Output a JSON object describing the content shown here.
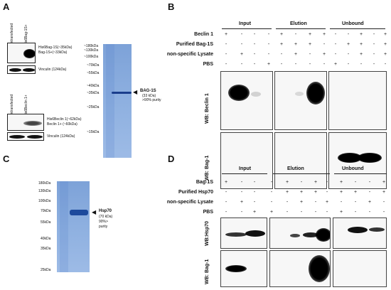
{
  "panels": {
    "A": "A",
    "B": "B",
    "C": "C",
    "D": "D"
  },
  "panelA": {
    "blot1_lanes": [
      "Untransfected",
      "His6Bag-1S+"
    ],
    "blot1_labels": [
      "His6Bag-1S(~35kDa)",
      "Bag-1S+(~33kDa)"
    ],
    "blot1_vinculin": "Vinculin (124kDa)",
    "blot2_lanes": [
      "Untransfected",
      "His6Beclin 1+"
    ],
    "blot2_labels": [
      "His6Beclin 1(~62kDa)",
      "Beclin 1+ (~60kDa)"
    ],
    "blot2_vinculin": "Vinculin (124kDa)",
    "ladder": [
      "~180kDa",
      "~130kDa",
      "~100kDa",
      "~70kDa",
      "~55kDa",
      "~40kDa",
      "~35kDa",
      "~25kDa",
      "~15kDa"
    ],
    "band_label": "BAG-1S",
    "band_detail": [
      "(33 kDa)",
      ">90% purity"
    ]
  },
  "panelB": {
    "groups": [
      "Input",
      "Elution",
      "Unbound"
    ],
    "rows": [
      {
        "label": "Beclin 1",
        "values": [
          "+",
          "-",
          "-",
          "-",
          "+",
          "-",
          "+",
          "+",
          "-",
          "-",
          "+",
          "-",
          "+"
        ]
      },
      {
        "label": "Purified Bag-1S",
        "values": [
          "-",
          "-",
          "-",
          "-",
          "+",
          "+",
          "+",
          "-",
          "-",
          "+",
          "+",
          "-",
          "+"
        ]
      },
      {
        "label": "non-specific Lysate",
        "values": [
          "-",
          "+",
          "-",
          "-",
          "-",
          "+",
          "-",
          "+",
          "-",
          "-",
          "+",
          "-",
          "+"
        ]
      },
      {
        "label": "PBS",
        "values": [
          "-",
          "-",
          "-",
          "+",
          "-",
          "-",
          "-",
          "-",
          "+",
          "-",
          "-",
          "-",
          "-"
        ]
      }
    ],
    "wb_top": "WB: Beclin 1",
    "wb_bottom": "WB: Bag-1"
  },
  "panelC": {
    "ladder": [
      "180kDa",
      "130kDa",
      "100kDa",
      "70kDa",
      "55kDa",
      "40kDa",
      "35kDa",
      "25kDa"
    ],
    "band_label": "Hsp70",
    "band_detail": [
      "(70 kDa)",
      "90%>",
      "purity"
    ]
  },
  "panelD": {
    "groups": [
      "Input",
      "Elution",
      "Unbound"
    ],
    "rows": [
      {
        "label": "Bag-1S",
        "values": [
          "+",
          "-",
          "-",
          "-",
          "+",
          "-",
          "+",
          "-",
          "+",
          "-",
          "-",
          "+"
        ]
      },
      {
        "label": "Purified Hsp70",
        "values": [
          "-",
          "-",
          "-",
          "-",
          "+",
          "+",
          "+",
          "-",
          "+",
          "+",
          "-",
          "+"
        ]
      },
      {
        "label": "non-specific Lysate",
        "values": [
          "-",
          "+",
          "-",
          "-",
          "-",
          "+",
          "-",
          "+",
          "-",
          "-",
          "+",
          "-"
        ]
      },
      {
        "label": "PBS",
        "values": [
          "-",
          "-",
          "+",
          "+",
          "-",
          "-",
          "-",
          "-",
          "+",
          "-",
          "-",
          "-"
        ]
      }
    ],
    "wb_top": "WB:Hsp70",
    "wb_bottom": "WB: Bag-1"
  }
}
